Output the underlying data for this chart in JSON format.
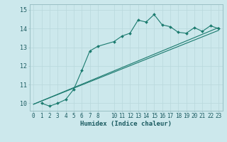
{
  "title": "",
  "xlabel": "Humidex (Indice chaleur)",
  "ylabel": "",
  "bg_color": "#cce8ec",
  "line_color": "#1a7a6e",
  "grid_color": "#b8d8dc",
  "line1_x": [
    1,
    2,
    3,
    4,
    5,
    6,
    7,
    8,
    10,
    11,
    12,
    13,
    14,
    15,
    16,
    17,
    18,
    19,
    20,
    21,
    22,
    23
  ],
  "line1_y": [
    10.0,
    9.85,
    10.0,
    10.2,
    10.75,
    11.75,
    12.8,
    13.05,
    13.3,
    13.6,
    13.75,
    14.45,
    14.35,
    14.75,
    14.2,
    14.1,
    13.8,
    13.75,
    14.05,
    13.85,
    14.15,
    14.0
  ],
  "line2_x": [
    0,
    23
  ],
  "line2_y": [
    9.95,
    13.9
  ],
  "line3_x": [
    0,
    23
  ],
  "line3_y": [
    9.95,
    14.05
  ],
  "xlim": [
    -0.5,
    23.5
  ],
  "ylim": [
    9.6,
    15.3
  ],
  "yticks": [
    10,
    11,
    12,
    13,
    14,
    15
  ],
  "xticks": [
    0,
    1,
    2,
    3,
    4,
    5,
    6,
    7,
    8,
    10,
    11,
    12,
    13,
    14,
    15,
    16,
    17,
    18,
    19,
    20,
    21,
    22,
    23
  ],
  "xtick_labels": [
    "0",
    "1",
    "2",
    "3",
    "4",
    "5",
    "6",
    "7",
    "8",
    "10",
    "11",
    "12",
    "13",
    "14",
    "15",
    "16",
    "17",
    "18",
    "19",
    "20",
    "21",
    "22",
    "23"
  ],
  "ytick_labels": [
    "10",
    "11",
    "12",
    "13",
    "14",
    "15"
  ],
  "tick_fontsize": 5.5,
  "xlabel_fontsize": 6.5
}
